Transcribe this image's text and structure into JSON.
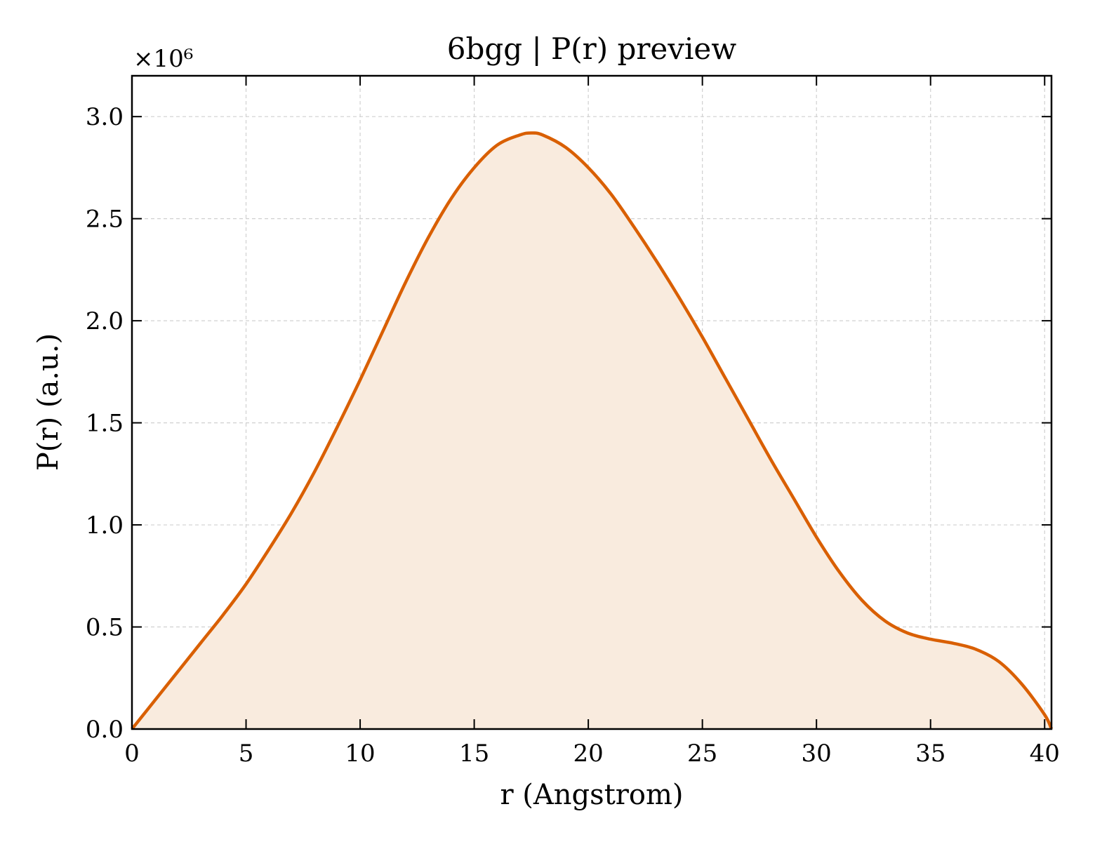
{
  "chart_data": {
    "type": "area",
    "title": "6bgg | P(r) preview",
    "xlabel": "r (Angstrom)",
    "ylabel": "P(r) (a.u.)",
    "y_multiplier_label": "×10⁶",
    "xlim": [
      0,
      40.3
    ],
    "ylim": [
      0,
      3.2
    ],
    "x_ticks": [
      0,
      5,
      10,
      15,
      20,
      25,
      30,
      35,
      40
    ],
    "x_tick_labels": [
      "0",
      "5",
      "10",
      "15",
      "20",
      "25",
      "30",
      "35",
      "40"
    ],
    "y_ticks": [
      0,
      0.5,
      1.0,
      1.5,
      2.0,
      2.5,
      3.0
    ],
    "y_tick_labels": [
      "0.0",
      "0.5",
      "1.0",
      "1.5",
      "2.0",
      "2.5",
      "3.0"
    ],
    "grid": true,
    "line_color": "#d95f02",
    "fill_color": "#f9ebde",
    "series": [
      {
        "x": [
          0,
          1,
          2,
          3,
          4,
          5,
          6,
          7,
          8,
          9,
          10,
          11,
          12,
          13,
          14,
          15,
          16,
          17,
          17.5,
          18,
          19,
          20,
          21,
          22,
          23,
          24,
          25,
          26,
          27,
          28,
          29,
          30,
          31,
          32,
          33,
          34,
          35,
          36,
          37,
          38,
          39,
          40,
          40.3
        ],
        "y": [
          0.0,
          0.14,
          0.28,
          0.42,
          0.56,
          0.71,
          0.88,
          1.06,
          1.26,
          1.48,
          1.71,
          1.95,
          2.19,
          2.41,
          2.6,
          2.75,
          2.86,
          2.91,
          2.92,
          2.91,
          2.85,
          2.75,
          2.62,
          2.46,
          2.29,
          2.11,
          1.92,
          1.72,
          1.52,
          1.32,
          1.13,
          0.94,
          0.77,
          0.63,
          0.53,
          0.47,
          0.44,
          0.42,
          0.39,
          0.33,
          0.22,
          0.07,
          0.0
        ]
      }
    ]
  }
}
